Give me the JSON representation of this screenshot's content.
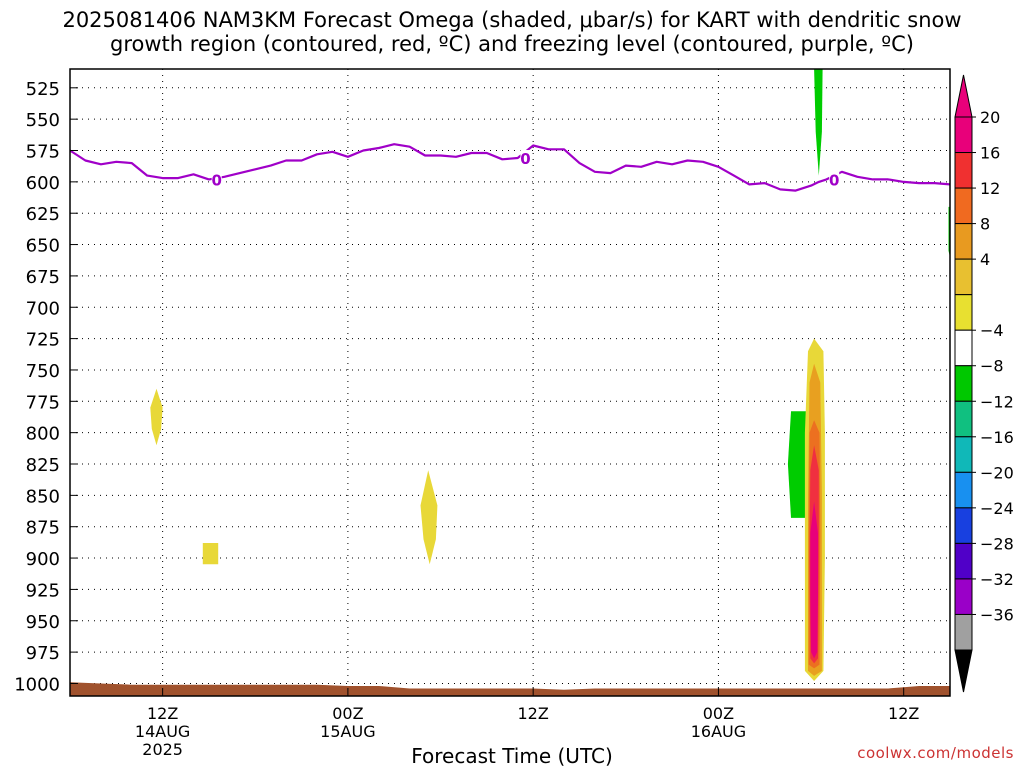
{
  "title": {
    "line1": "2025081406 NAM3KM Forecast Omega (shaded, μbar/s) for KART with dendritic snow",
    "line2": "growth region (contoured, red, ºC) and freezing level (contoured, purple, ºC)"
  },
  "credit": "coolwx.com/models",
  "chart_data": {
    "type": "time-height cross section",
    "xlabel": "Forecast Time (UTC)",
    "ylabel": "",
    "xlim": [
      6,
      63
    ],
    "ylim": [
      1010,
      510
    ],
    "y_ticks": [
      525,
      550,
      575,
      600,
      625,
      650,
      675,
      700,
      725,
      750,
      775,
      800,
      825,
      850,
      875,
      900,
      925,
      950,
      975,
      1000
    ],
    "x_ticks": [
      {
        "hour": 12,
        "label": "12Z",
        "date": "14AUG",
        "year": "2025"
      },
      {
        "hour": 24,
        "label": "00Z",
        "date": "15AUG",
        "year": ""
      },
      {
        "hour": 36,
        "label": "12Z",
        "date": "",
        "year": ""
      },
      {
        "hour": 48,
        "label": "00Z",
        "date": "16AUG",
        "year": ""
      },
      {
        "hour": 60,
        "label": "12Z",
        "date": "",
        "year": ""
      }
    ],
    "grid": true,
    "colorbar": {
      "labels": [
        "20",
        "16",
        "12",
        "8",
        "4",
        "-4",
        "-8",
        "-12",
        "-16",
        "-20",
        "-24",
        "-28",
        "-32",
        "-36"
      ],
      "colors": [
        "#e8007a",
        "#f03030",
        "#f06a20",
        "#e89a20",
        "#e8c030",
        "#e8e030",
        "#ffffff",
        "#00c800",
        "#10c080",
        "#10b8b8",
        "#1890f0",
        "#1840e0",
        "#5000c8",
        "#9a00c8",
        "#a0a0a0"
      ],
      "top_arrow_color": "#e8007a",
      "bottom_arrow_color": "#000000"
    },
    "freezing_level": {
      "label": "0",
      "color": "#a000c8",
      "x": [
        6,
        7,
        8,
        9,
        10,
        11,
        12,
        13,
        14,
        15,
        16,
        17,
        18,
        19,
        20,
        21,
        22,
        23,
        24,
        25,
        26,
        27,
        28,
        29,
        30,
        31,
        32,
        33,
        34,
        35,
        36,
        37,
        38,
        39,
        40,
        41,
        42,
        43,
        44,
        45,
        46,
        47,
        48,
        49,
        50,
        51,
        52,
        53,
        54,
        54.5,
        55,
        56,
        57,
        58,
        59,
        60,
        61,
        62,
        63
      ],
      "y": [
        575,
        583,
        586,
        584,
        585,
        595,
        597,
        597,
        594,
        598,
        596,
        593,
        590,
        587,
        583,
        583,
        578,
        576,
        580,
        575,
        573,
        570,
        572,
        579,
        579,
        580,
        577,
        577,
        582,
        581,
        571,
        574,
        574,
        585,
        592,
        593,
        587,
        588,
        584,
        586,
        583,
        584,
        588,
        595,
        602,
        601,
        606,
        607,
        603,
        600,
        598,
        592,
        596,
        598,
        598,
        600,
        601,
        601,
        602
      ]
    },
    "omega_regions": [
      {
        "value": 4,
        "color": "#e8d838",
        "points": [
          [
            11.6,
            765
          ],
          [
            12.0,
            780
          ],
          [
            11.9,
            797
          ],
          [
            11.6,
            810
          ],
          [
            11.3,
            797
          ],
          [
            11.2,
            780
          ]
        ]
      },
      {
        "value": 4,
        "color": "#e8d838",
        "points": [
          [
            14.6,
            888
          ],
          [
            15.6,
            888
          ],
          [
            15.6,
            905
          ],
          [
            14.6,
            905
          ]
        ]
      },
      {
        "value": 4,
        "color": "#e8d838",
        "points": [
          [
            29.2,
            830
          ],
          [
            29.8,
            858
          ],
          [
            29.7,
            885
          ],
          [
            29.3,
            905
          ],
          [
            28.9,
            885
          ],
          [
            28.7,
            858
          ]
        ]
      },
      {
        "value": -8,
        "color": "#00cc00",
        "points": [
          [
            54.2,
            510
          ],
          [
            54.75,
            510
          ],
          [
            54.7,
            560
          ],
          [
            54.5,
            595
          ],
          [
            54.3,
            560
          ]
        ]
      },
      {
        "value": -8,
        "color": "#00cc00",
        "points": [
          [
            52.7,
            783
          ],
          [
            53.7,
            783
          ],
          [
            53.7,
            868
          ],
          [
            52.7,
            868
          ],
          [
            52.5,
            825
          ]
        ]
      },
      {
        "value": -8,
        "color": "#00cc00",
        "points": [
          [
            62.9,
            620
          ],
          [
            63.0,
            620
          ],
          [
            63.0,
            660
          ],
          [
            62.9,
            655
          ]
        ]
      },
      {
        "value": 4,
        "color": "#e8d838",
        "points": [
          [
            54.2,
            725
          ],
          [
            54.8,
            735
          ],
          [
            54.9,
            800
          ],
          [
            54.9,
            900
          ],
          [
            54.8,
            990
          ],
          [
            54.2,
            998
          ],
          [
            53.6,
            990
          ],
          [
            53.6,
            900
          ],
          [
            53.6,
            800
          ],
          [
            53.8,
            735
          ]
        ]
      },
      {
        "value": 8,
        "color": "#e8a020",
        "points": [
          [
            54.2,
            745
          ],
          [
            54.6,
            760
          ],
          [
            54.7,
            850
          ],
          [
            54.7,
            990
          ],
          [
            54.2,
            994
          ],
          [
            53.8,
            990
          ],
          [
            53.8,
            850
          ],
          [
            53.9,
            760
          ]
        ]
      },
      {
        "value": 12,
        "color": "#ec7020",
        "points": [
          [
            54.2,
            790
          ],
          [
            54.55,
            800
          ],
          [
            54.6,
            880
          ],
          [
            54.55,
            985
          ],
          [
            54.2,
            988
          ],
          [
            53.85,
            985
          ],
          [
            53.85,
            880
          ],
          [
            53.9,
            800
          ]
        ]
      },
      {
        "value": 16,
        "color": "#f03040",
        "points": [
          [
            54.2,
            810
          ],
          [
            54.5,
            830
          ],
          [
            54.5,
            900
          ],
          [
            54.45,
            980
          ],
          [
            54.2,
            984
          ],
          [
            53.95,
            980
          ],
          [
            53.9,
            900
          ],
          [
            53.95,
            830
          ]
        ]
      },
      {
        "value": 20,
        "color": "#e8007a",
        "points": [
          [
            54.2,
            855
          ],
          [
            54.45,
            880
          ],
          [
            54.45,
            930
          ],
          [
            54.4,
            975
          ],
          [
            54.2,
            980
          ],
          [
            54.0,
            975
          ],
          [
            53.95,
            930
          ],
          [
            53.95,
            880
          ]
        ]
      }
    ],
    "terrain": {
      "color": "#a0522d",
      "x": [
        6,
        8,
        10,
        12,
        14,
        16,
        18,
        20,
        22,
        24,
        26,
        28,
        30,
        32,
        34,
        36,
        38,
        40,
        42,
        44,
        46,
        48,
        50,
        52,
        54,
        56,
        58,
        59,
        60,
        61,
        62,
        63
      ],
      "y": [
        999,
        1000,
        1001,
        1001,
        1001,
        1001,
        1001,
        1001,
        1001,
        1002,
        1002,
        1004,
        1004,
        1004,
        1004,
        1004,
        1005,
        1004,
        1004,
        1004,
        1004,
        1004,
        1004,
        1004,
        1004,
        1004,
        1004,
        1004,
        1003,
        1002,
        1002,
        1002
      ]
    }
  }
}
